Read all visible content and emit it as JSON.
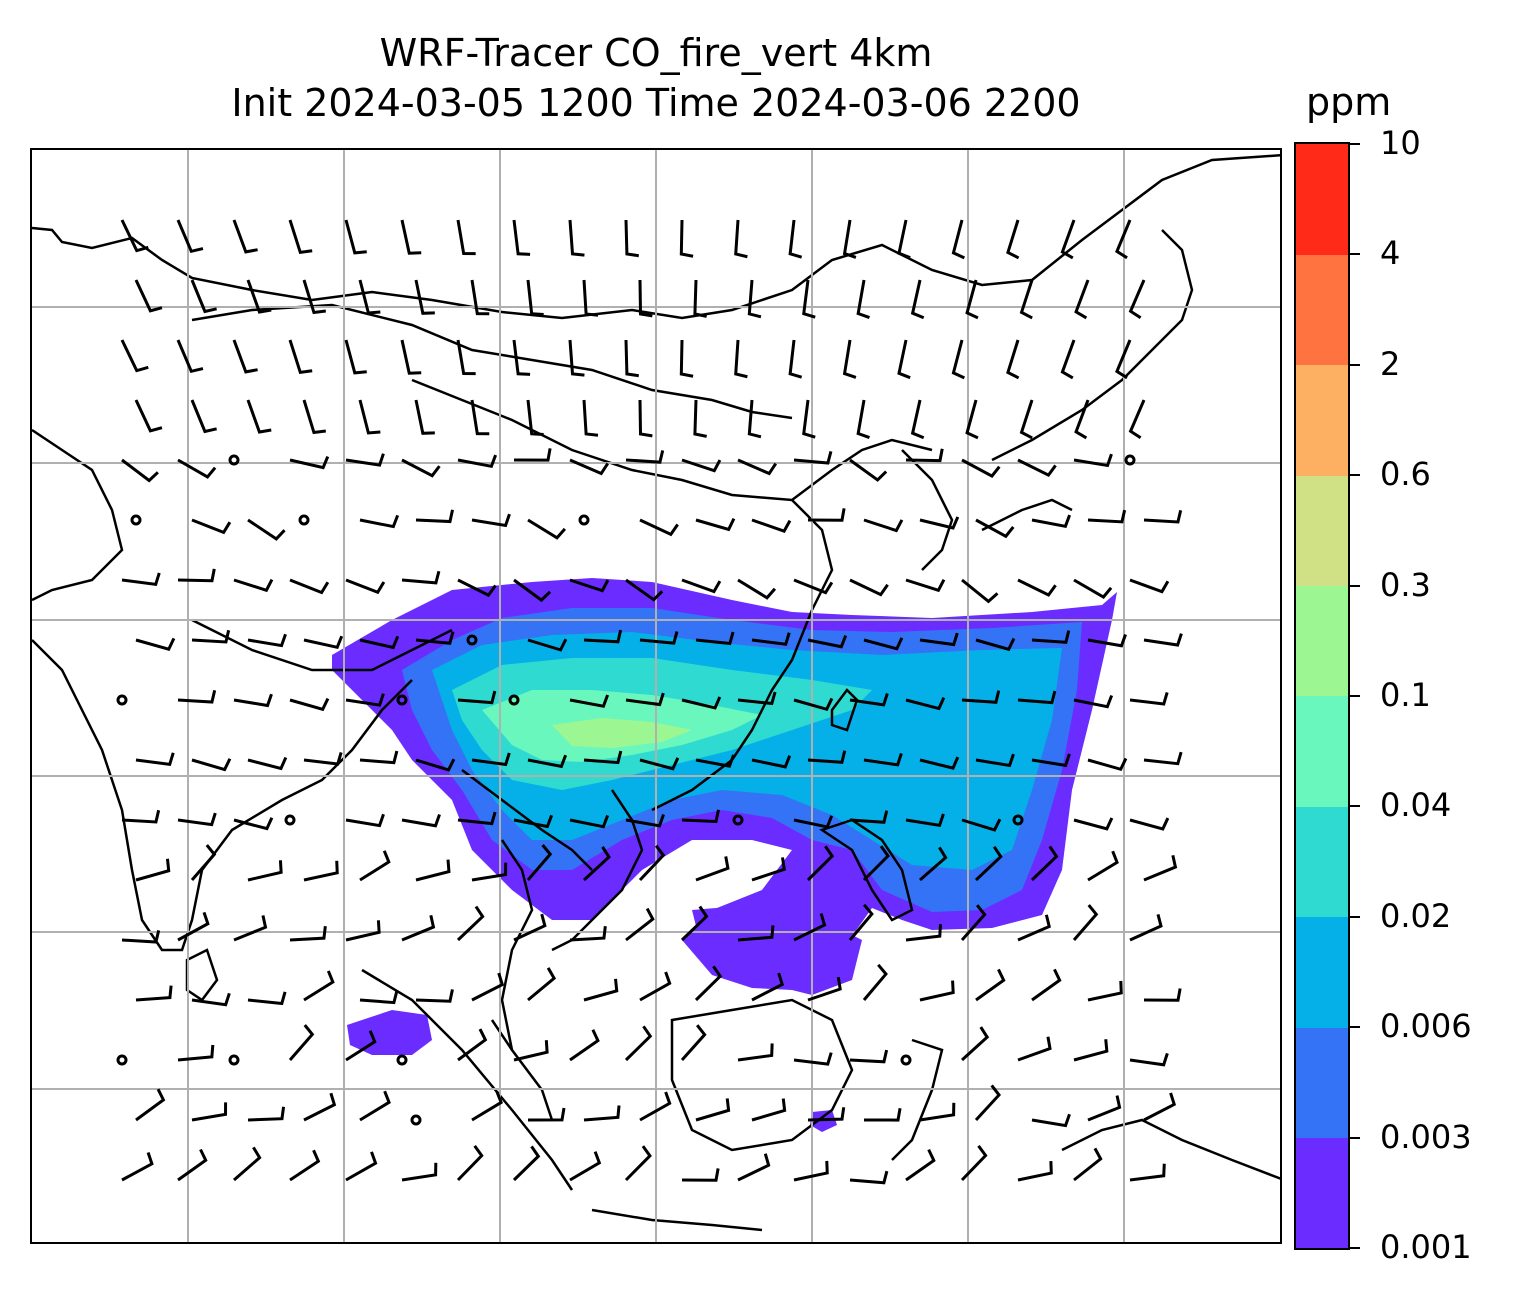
{
  "title": {
    "line1": "WRF-Tracer CO_fire_vert 4km",
    "line2": "Init 2024-03-05 1200 Time 2024-03-06 2200"
  },
  "colorbar": {
    "unit": "ppm",
    "ticks": [
      "0.001",
      "0.003",
      "0.006",
      "0.02",
      "0.04",
      "0.1",
      "0.3",
      "0.6",
      "2",
      "4",
      "10"
    ],
    "colors": [
      "#6a2cff",
      "#3473f5",
      "#05b0e8",
      "#2fdbd0",
      "#6af7be",
      "#9cf793",
      "#cfe085",
      "#fdb062",
      "#fe7340",
      "#ff2b18"
    ]
  },
  "map": {
    "gridlines": "on",
    "plume_colors": {
      "outer": "#6a2cff",
      "mid": "#3473f5",
      "inner": "#05b0e8",
      "core": "#2fdbd0",
      "peak": "#6af7be",
      "max": "#9cf793"
    },
    "wind_barbs": "black"
  }
}
